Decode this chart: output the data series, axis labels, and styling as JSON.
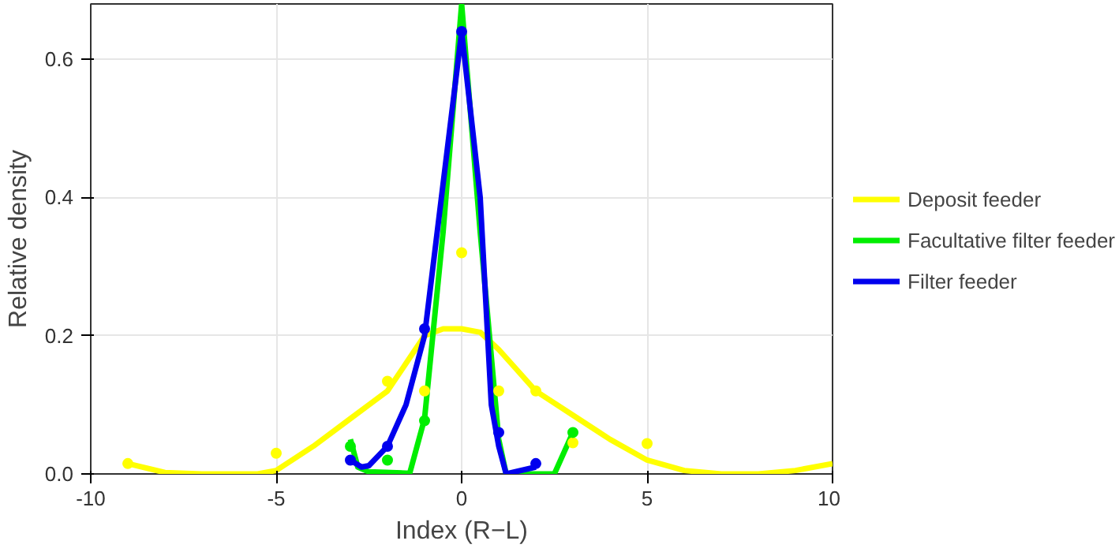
{
  "chart_data": {
    "type": "line",
    "xlabel": "Index (R−L)",
    "ylabel": "Relative density",
    "xlim": [
      -10,
      10
    ],
    "ylim": [
      0,
      0.68
    ],
    "xticks": [
      -10,
      -5,
      0,
      5,
      10
    ],
    "yticks": [
      {
        "value": 0,
        "label": "0.0"
      },
      0.2,
      0.4,
      0.6
    ],
    "grid": true,
    "legend": "right",
    "line_style": "solid",
    "series": [
      {
        "name": "Deposit feeder",
        "color": "#ffff00",
        "x": [
          -9,
          -8,
          -7,
          -5.5,
          -5,
          -4,
          -3,
          -2,
          -1.5,
          -1,
          -0.5,
          0,
          0.5,
          1,
          1.5,
          2,
          3,
          4,
          5,
          6,
          7,
          8,
          9,
          10
        ],
        "values": [
          0.015,
          0.002,
          0,
          0,
          0.005,
          0.04,
          0.08,
          0.12,
          0.16,
          0.2,
          0.21,
          0.21,
          0.205,
          0.18,
          0.15,
          0.12,
          0.085,
          0.05,
          0.02,
          0.005,
          0,
          0,
          0.005,
          0.015
        ]
      },
      {
        "name": "Facultative filter feeder",
        "color": "#00ee00",
        "x": [
          -3,
          -2.8,
          -2.5,
          -1.4,
          -1,
          -0.5,
          0,
          0.5,
          1,
          1.2,
          2.5,
          3
        ],
        "values": [
          0.05,
          0.01,
          0.003,
          0.001,
          0.08,
          0.35,
          0.68,
          0.35,
          0.05,
          0,
          0,
          0.06
        ]
      },
      {
        "name": "Filter feeder",
        "color": "#0000ee",
        "x": [
          -3,
          -2.7,
          -2.5,
          -2,
          -1.5,
          -1,
          -0.5,
          0,
          0.5,
          0.8,
          1,
          1.2,
          2
        ],
        "values": [
          0.02,
          0.01,
          0.012,
          0.04,
          0.1,
          0.2,
          0.42,
          0.64,
          0.4,
          0.1,
          0.04,
          0,
          0.01
        ]
      },
      {
        "color": "#ffff00",
        "type": "scatter",
        "x": [
          -9,
          -5,
          -3,
          -2,
          -1,
          0,
          1,
          2,
          3,
          5
        ],
        "values": [
          0.015,
          0.03,
          null,
          0.134,
          0.12,
          0.32,
          0.12,
          0.12,
          0.045,
          0.044
        ]
      },
      {
        "color": "#00ee00",
        "type": "scatter",
        "x": [
          -3,
          -2,
          -1,
          1,
          2,
          3
        ],
        "values": [
          0.04,
          0.02,
          0.077,
          null,
          null,
          0.06
        ]
      },
      {
        "color": "#0000ee",
        "type": "scatter",
        "x": [
          -3,
          -2,
          -1,
          0,
          1,
          2
        ],
        "values": [
          0.02,
          0.04,
          0.21,
          0.64,
          0.06,
          0.015
        ]
      }
    ]
  }
}
